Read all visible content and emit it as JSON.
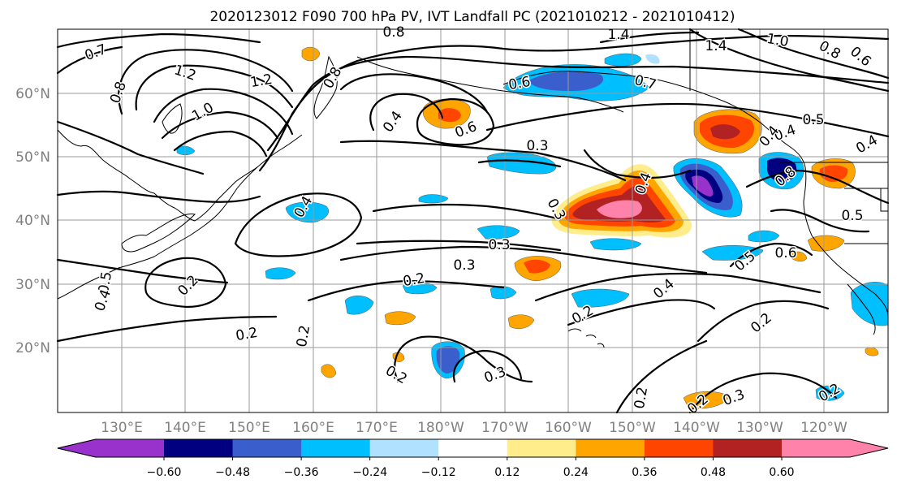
{
  "title": "2020123012 F090 700 hPa PV, IVT Landfall PC (2021010212 - 2021010412)",
  "map": {
    "lat_ticks": [
      "60°N",
      "50°N",
      "40°N",
      "30°N",
      "20°N"
    ],
    "lon_ticks": [
      "130°E",
      "140°E",
      "150°E",
      "160°E",
      "170°E",
      "180°W",
      "170°W",
      "160°W",
      "150°W",
      "140°W",
      "130°W",
      "120°W"
    ]
  },
  "colorbar": {
    "ticks": [
      "−0.60",
      "−0.48",
      "−0.36",
      "−0.24",
      "−0.12",
      "0.12",
      "0.24",
      "0.36",
      "0.48",
      "0.60"
    ],
    "colors": [
      "#9932cc",
      "#000080",
      "#3a5fcd",
      "#00bfff",
      "#b0e2ff",
      "#ffffff",
      "#ffec8b",
      "#ffa500",
      "#ff4500",
      "#b22222",
      "#ff82ab"
    ]
  },
  "contour_labels": [
    "0.7",
    "0.8",
    "1.2",
    "1.2",
    "0.8",
    "0.8",
    "1.0",
    "0.4",
    "0.6",
    "0.3",
    "0.6",
    "0.7",
    "1.4",
    "1.4",
    "1.0",
    "0.8",
    "0.6",
    "0.5",
    "0.4",
    "0.4",
    "0.5",
    "0.3",
    "0.4",
    "0.3",
    "0.4",
    "0.3",
    "0.2",
    "0.5",
    "0.4",
    "0.2",
    "0.2",
    "0.2",
    "0.2",
    "0.3",
    "0.2",
    "0.4",
    "0.5",
    "0.6",
    "0.2",
    "0.2",
    "0.2",
    "0.2",
    "0.3",
    "0.8",
    "0.4"
  ]
}
